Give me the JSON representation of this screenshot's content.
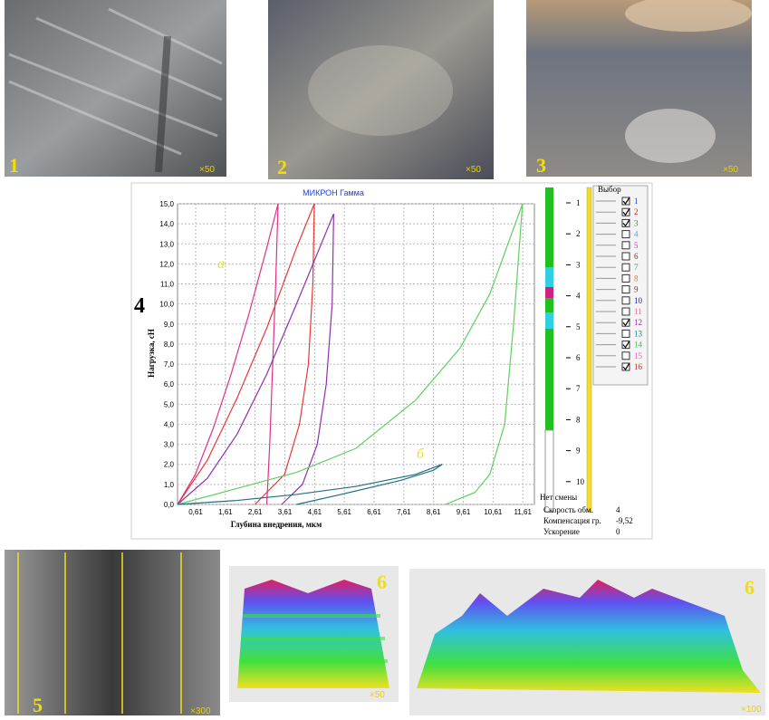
{
  "panels": [
    {
      "number": "1",
      "magnification": "×50"
    },
    {
      "number": "2",
      "magnification": "×50"
    },
    {
      "number": "3",
      "magnification": "×50"
    }
  ],
  "bottom_panels": [
    {
      "number": "5",
      "magnification": "×300"
    },
    {
      "number": "6",
      "magnification": "×50"
    },
    {
      "number": "6",
      "magnification": "×100"
    }
  ],
  "chart_data": {
    "type": "line",
    "title": "МИКРОН Гамма",
    "panel_label": "4",
    "x_label": "Глубина внедрения, мкм",
    "y_label": "Нагрузка, сН",
    "annotations": [
      "а",
      "б"
    ],
    "xlim": [
      0,
      12
    ],
    "ylim": [
      0,
      15
    ],
    "grid": true,
    "xticks": [
      {
        "value": 0.61,
        "label": "0,61"
      },
      {
        "value": 1.61,
        "label": "1,61"
      },
      {
        "value": 2.61,
        "label": "2,61"
      },
      {
        "value": 3.61,
        "label": "3,61"
      },
      {
        "value": 4.61,
        "label": "4,61"
      },
      {
        "value": 5.61,
        "label": "5,61"
      },
      {
        "value": 6.61,
        "label": "6,61"
      },
      {
        "value": 7.61,
        "label": "7,61"
      },
      {
        "value": 8.61,
        "label": "8,61"
      },
      {
        "value": 9.61,
        "label": "9,61"
      },
      {
        "value": 10.61,
        "label": "10,61"
      },
      {
        "value": 11.61,
        "label": "11,61"
      }
    ],
    "yticks": [
      {
        "value": 0,
        "label": "0,0"
      },
      {
        "value": 1,
        "label": "1,0"
      },
      {
        "value": 2,
        "label": "2,0"
      },
      {
        "value": 3,
        "label": "3,0"
      },
      {
        "value": 4,
        "label": "4,0"
      },
      {
        "value": 5,
        "label": "5,0"
      },
      {
        "value": 6,
        "label": "6,0"
      },
      {
        "value": 7,
        "label": "7,0"
      },
      {
        "value": 8,
        "label": "8,0"
      },
      {
        "value": 9,
        "label": "9,0"
      },
      {
        "value": 10,
        "label": "10,0"
      },
      {
        "value": 11,
        "label": "11,0"
      },
      {
        "value": 12,
        "label": "12,0"
      },
      {
        "value": 13,
        "label": "13,0"
      },
      {
        "value": 14,
        "label": "14,0"
      },
      {
        "value": 15,
        "label": "15,0"
      }
    ],
    "series": [
      {
        "color": "#e0308a",
        "x": [
          0,
          0.6,
          1.2,
          1.8,
          2.4,
          3.0,
          3.38,
          3.3,
          3.2,
          3.1,
          3.0
        ],
        "y": [
          0,
          1.5,
          3.8,
          6.5,
          9.5,
          12.8,
          15,
          11,
          7,
          3,
          0
        ]
      },
      {
        "color": "#e83838",
        "x": [
          0,
          1,
          2,
          3,
          4,
          4.6,
          4.55,
          4.4,
          4.1,
          3.6,
          2.6
        ],
        "y": [
          0,
          2.2,
          5.3,
          8.8,
          12.8,
          15,
          11,
          7,
          4,
          1.5,
          0
        ]
      },
      {
        "color": "#9030b0",
        "x": [
          0,
          1,
          2,
          3,
          4,
          5.25,
          5.2,
          5.0,
          4.7,
          4.2,
          3.5
        ],
        "y": [
          0,
          1.3,
          3.5,
          6.5,
          10,
          14.5,
          10,
          6,
          3,
          1,
          0
        ]
      },
      {
        "color": "#60d060",
        "x": [
          0,
          2,
          4,
          6,
          8,
          9.5,
          10.5,
          11.6,
          11.3,
          11.0,
          10.5,
          10,
          9
        ],
        "y": [
          0,
          0.8,
          1.6,
          2.8,
          5.2,
          7.8,
          10.5,
          15,
          9,
          4,
          1.5,
          0.6,
          0
        ]
      },
      {
        "color": "#207080",
        "x": [
          0,
          2,
          4,
          6,
          8,
          8.9,
          8.6,
          7.5,
          5.5,
          4
        ],
        "y": [
          0,
          0.2,
          0.5,
          0.9,
          1.5,
          2.0,
          1.7,
          1.2,
          0.5,
          0
        ]
      }
    ]
  },
  "sidebar": {
    "scale": [
      1,
      2,
      3,
      4,
      5,
      6,
      7,
      8,
      9,
      10
    ],
    "select_title": "Выбор",
    "items": [
      {
        "label": "1",
        "checked": true,
        "color": "#2040d0"
      },
      {
        "label": "2",
        "checked": true,
        "color": "#e02020"
      },
      {
        "label": "3",
        "checked": true,
        "color": "#20a020"
      },
      {
        "label": "4",
        "checked": false,
        "color": "#30b0e0"
      },
      {
        "label": "5",
        "checked": false,
        "color": "#e030e0"
      },
      {
        "label": "6",
        "checked": false,
        "color": "#903020"
      },
      {
        "label": "7",
        "checked": false,
        "color": "#30a080"
      },
      {
        "label": "8",
        "checked": false,
        "color": "#e08020"
      },
      {
        "label": "9",
        "checked": false,
        "color": "#804010"
      },
      {
        "label": "10",
        "checked": false,
        "color": "#202090"
      },
      {
        "label": "11",
        "checked": false,
        "color": "#f07090"
      },
      {
        "label": "12",
        "checked": true,
        "color": "#9030b0"
      },
      {
        "label": "13",
        "checked": false,
        "color": "#208080"
      },
      {
        "label": "14",
        "checked": true,
        "color": "#40c040"
      },
      {
        "label": "15",
        "checked": false,
        "color": "#f060c0"
      },
      {
        "label": "16",
        "checked": true,
        "color": "#d02020"
      }
    ],
    "status": "Нет смены",
    "params": [
      {
        "label": "Скорость обм.",
        "value": "4"
      },
      {
        "label": "Компенсация гр.",
        "value": "-9,52"
      },
      {
        "label": "Ускорение",
        "value": "0"
      }
    ]
  }
}
